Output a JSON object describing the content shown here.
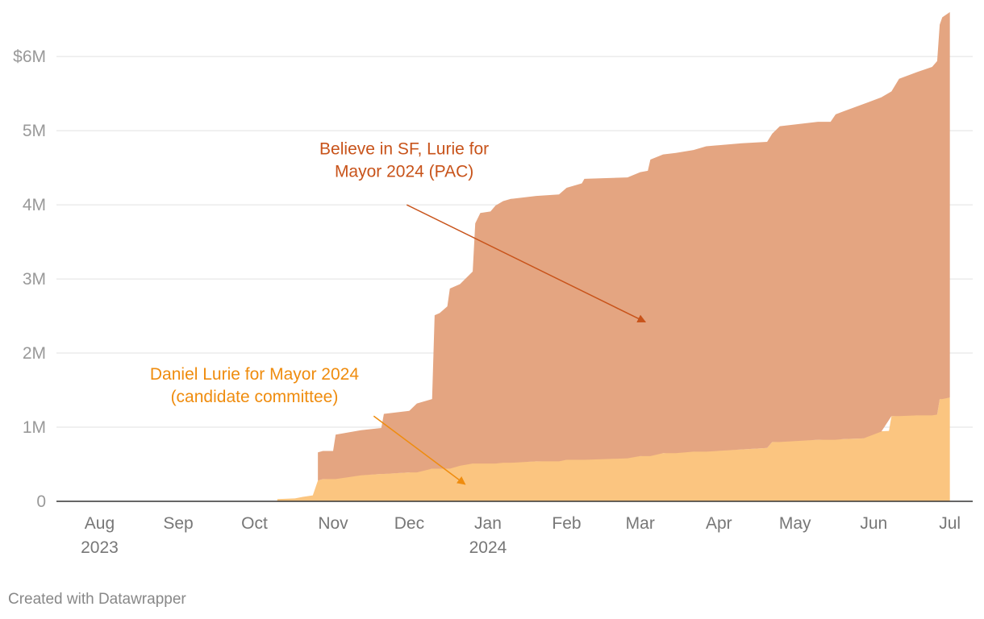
{
  "chart_data": {
    "type": "area",
    "stacked": true,
    "title": "",
    "xlabel": "",
    "ylabel": "",
    "ylim": [
      0,
      6600000
    ],
    "y_ticks": [
      {
        "value": 0,
        "label": "0"
      },
      {
        "value": 1000000,
        "label": "1M"
      },
      {
        "value": 2000000,
        "label": "2M"
      },
      {
        "value": 3000000,
        "label": "3M"
      },
      {
        "value": 4000000,
        "label": "4M"
      },
      {
        "value": 5000000,
        "label": "5M"
      },
      {
        "value": 6000000,
        "label": "$6M"
      }
    ],
    "x_range": [
      "2023-07-15",
      "2024-07-10"
    ],
    "x_ticks": [
      {
        "date": "2023-08-01",
        "label": "Aug",
        "sublabel": "2023"
      },
      {
        "date": "2023-09-01",
        "label": "Sep",
        "sublabel": ""
      },
      {
        "date": "2023-10-01",
        "label": "Oct",
        "sublabel": ""
      },
      {
        "date": "2023-11-01",
        "label": "Nov",
        "sublabel": ""
      },
      {
        "date": "2023-12-01",
        "label": "Dec",
        "sublabel": ""
      },
      {
        "date": "2024-01-01",
        "label": "Jan",
        "sublabel": "2024"
      },
      {
        "date": "2024-02-01",
        "label": "Feb",
        "sublabel": ""
      },
      {
        "date": "2024-03-01",
        "label": "Mar",
        "sublabel": ""
      },
      {
        "date": "2024-04-01",
        "label": "Apr",
        "sublabel": ""
      },
      {
        "date": "2024-05-01",
        "label": "May",
        "sublabel": ""
      },
      {
        "date": "2024-06-01",
        "label": "Jun",
        "sublabel": ""
      },
      {
        "date": "2024-07-01",
        "label": "Jul",
        "sublabel": ""
      }
    ],
    "series": [
      {
        "name": "Daniel Lurie for Mayor 2024 (candidate committee)",
        "color": "#fbc580",
        "points": [
          [
            "2023-10-10",
            30000
          ],
          [
            "2023-10-17",
            40000
          ],
          [
            "2023-10-20",
            60000
          ],
          [
            "2023-10-24",
            80000
          ],
          [
            "2023-10-26",
            280000
          ],
          [
            "2023-10-28",
            300000
          ],
          [
            "2023-11-05",
            320000
          ],
          [
            "2023-11-10",
            350000
          ],
          [
            "2023-11-20",
            370000
          ],
          [
            "2023-12-01",
            390000
          ],
          [
            "2023-12-10",
            440000
          ],
          [
            "2023-12-20",
            480000
          ],
          [
            "2023-12-25",
            510000
          ],
          [
            "2024-01-05",
            520000
          ],
          [
            "2024-01-20",
            540000
          ],
          [
            "2024-02-01",
            560000
          ],
          [
            "2024-02-15",
            580000
          ],
          [
            "2024-03-01",
            610000
          ],
          [
            "2024-03-10",
            650000
          ],
          [
            "2024-03-20",
            670000
          ],
          [
            "2024-04-10",
            700000
          ],
          [
            "2024-04-20",
            720000
          ],
          [
            "2024-04-22",
            800000
          ],
          [
            "2024-05-01",
            820000
          ],
          [
            "2024-05-10",
            830000
          ],
          [
            "2024-05-20",
            840000
          ],
          [
            "2024-05-28",
            850000
          ],
          [
            "2024-05-29",
            930000
          ],
          [
            "2024-06-01",
            940000
          ],
          [
            "2024-06-07",
            950000
          ],
          [
            "2024-06-08",
            1150000
          ],
          [
            "2024-06-15",
            1160000
          ],
          [
            "2024-06-26",
            1170000
          ],
          [
            "2024-06-27",
            1380000
          ],
          [
            "2024-07-01",
            1400000
          ]
        ]
      },
      {
        "name": "Believe in SF, Lurie for Mayor 2024 (PAC)",
        "color": "#e4a581",
        "points": [
          [
            "2023-10-26",
            380000
          ],
          [
            "2023-10-28",
            380000
          ],
          [
            "2023-11-01",
            380000
          ],
          [
            "2023-11-02",
            600000
          ],
          [
            "2023-11-12",
            610000
          ],
          [
            "2023-11-20",
            620000
          ],
          [
            "2023-11-21",
            810000
          ],
          [
            "2023-12-01",
            830000
          ],
          [
            "2023-12-04",
            930000
          ],
          [
            "2023-12-10",
            940000
          ],
          [
            "2023-12-11",
            2070000
          ],
          [
            "2023-12-13",
            2100000
          ],
          [
            "2023-12-16",
            2190000
          ],
          [
            "2023-12-17",
            2430000
          ],
          [
            "2023-12-21",
            2450000
          ],
          [
            "2023-12-26",
            2590000
          ],
          [
            "2023-12-27",
            3240000
          ],
          [
            "2023-12-29",
            3380000
          ],
          [
            "2024-01-02",
            3400000
          ],
          [
            "2024-01-04",
            3480000
          ],
          [
            "2024-01-07",
            3530000
          ],
          [
            "2024-01-10",
            3560000
          ],
          [
            "2024-01-20",
            3580000
          ],
          [
            "2024-01-29",
            3600000
          ],
          [
            "2024-02-01",
            3670000
          ],
          [
            "2024-02-07",
            3730000
          ],
          [
            "2024-02-08",
            3790000
          ],
          [
            "2024-02-25",
            3790000
          ],
          [
            "2024-03-01",
            3830000
          ],
          [
            "2024-03-04",
            3850000
          ],
          [
            "2024-03-05",
            4000000
          ],
          [
            "2024-03-10",
            4030000
          ],
          [
            "2024-03-15",
            4050000
          ],
          [
            "2024-03-22",
            4070000
          ],
          [
            "2024-03-27",
            4120000
          ],
          [
            "2024-04-10",
            4130000
          ],
          [
            "2024-04-20",
            4130000
          ],
          [
            "2024-04-22",
            4160000
          ],
          [
            "2024-04-25",
            4260000
          ],
          [
            "2024-05-10",
            4290000
          ],
          [
            "2024-05-15",
            4290000
          ],
          [
            "2024-05-17",
            4390000
          ],
          [
            "2024-05-20",
            4420000
          ],
          [
            "2024-05-28",
            4510000
          ],
          [
            "2024-06-04",
            4510000
          ],
          [
            "2024-06-08",
            4380000
          ],
          [
            "2024-06-11",
            4550000
          ],
          [
            "2024-06-18",
            4630000
          ],
          [
            "2024-06-24",
            4700000
          ],
          [
            "2024-06-26",
            4770000
          ],
          [
            "2024-06-27",
            5050000
          ],
          [
            "2024-06-28",
            5150000
          ],
          [
            "2024-07-01",
            5200000
          ]
        ]
      }
    ],
    "annotations": [
      {
        "series": "Believe in SF, Lurie for Mayor 2024 (PAC)",
        "lines": [
          "Believe in SF, Lurie for",
          "Mayor 2024 (PAC)"
        ],
        "color": "#c8531a",
        "text_anchor": [
          "2023-11-29",
          4680000
        ],
        "arrow_from": [
          "2023-11-30",
          4000000
        ],
        "arrow_to": [
          "2024-03-03",
          2420000
        ]
      },
      {
        "series": "Daniel Lurie for Mayor 2024 (candidate committee)",
        "lines": [
          "Daniel Lurie for Mayor 2024",
          "(candidate committee)"
        ],
        "color": "#ef8c0e",
        "text_anchor": [
          "2023-10-01",
          1640000
        ],
        "arrow_from": [
          "2023-11-17",
          1150000
        ],
        "arrow_to": [
          "2023-12-23",
          230000
        ]
      }
    ]
  },
  "footer": {
    "credit": "Created with Datawrapper"
  }
}
